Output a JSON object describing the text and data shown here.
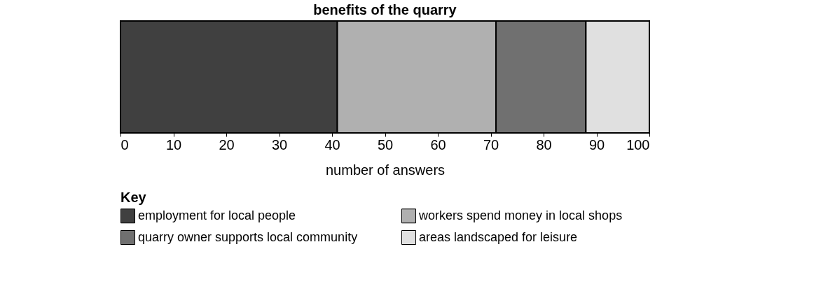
{
  "chart_data": {
    "type": "bar",
    "orientation": "horizontal",
    "stacked": true,
    "title": "benefits of the quarry",
    "xlabel": "number of answers",
    "legend_title": "Key",
    "legend": "bottom",
    "categories": [
      null
    ],
    "series": [
      {
        "name": "employment for local people",
        "color": "#404040",
        "values": [
          41
        ]
      },
      {
        "name": "workers spend money in local shops",
        "color": "#b0b0b0",
        "values": [
          30
        ]
      },
      {
        "name": "quarry owner supports local community",
        "color": "#707070",
        "values": [
          17
        ]
      },
      {
        "name": "areas landscaped for leisure",
        "color": "#e0e0e0",
        "values": [
          12
        ]
      }
    ],
    "xlim": [
      0,
      100
    ],
    "xticks": [
      0,
      10,
      20,
      30,
      40,
      50,
      60,
      70,
      80,
      90,
      100
    ]
  }
}
